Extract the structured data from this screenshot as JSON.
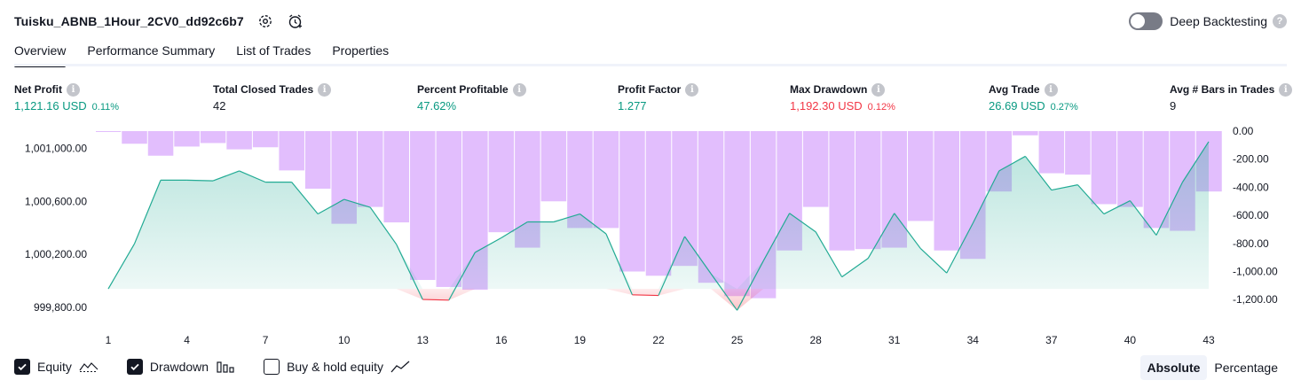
{
  "header": {
    "title": "Tuisku_ABNB_1Hour_2CV0_dd92c6b7",
    "deep_backtesting_label": "Deep Backtesting",
    "help_glyph": "?"
  },
  "tabs": [
    {
      "label": "Overview",
      "active": true
    },
    {
      "label": "Performance Summary",
      "active": false
    },
    {
      "label": "List of Trades",
      "active": false
    },
    {
      "label": "Properties",
      "active": false
    }
  ],
  "info_glyph": "i",
  "metrics": [
    {
      "label": "Net Profit",
      "value": "1,121.16 USD",
      "pct": "0.11%",
      "tone": "pos"
    },
    {
      "label": "Total Closed Trades",
      "value": "42",
      "pct": "",
      "tone": "neu"
    },
    {
      "label": "Percent Profitable",
      "value": "47.62%",
      "pct": "",
      "tone": "pos"
    },
    {
      "label": "Profit Factor",
      "value": "1.277",
      "pct": "",
      "tone": "pos"
    },
    {
      "label": "Max Drawdown",
      "value": "1,192.30 USD",
      "pct": "0.12%",
      "tone": "neg"
    },
    {
      "label": "Avg Trade",
      "value": "26.69 USD",
      "pct": "0.27%",
      "tone": "pos"
    },
    {
      "label": "Avg # Bars in Trades",
      "value": "9",
      "pct": "",
      "tone": "neu"
    }
  ],
  "legend": {
    "equity_label": "Equity",
    "drawdown_label": "Drawdown",
    "buyhold_label": "Buy & hold equity"
  },
  "modes": {
    "absolute_label": "Absolute",
    "percentage_label": "Percentage"
  },
  "colors": {
    "equity_line": "#22ab94",
    "equity_loss_line": "#f23645",
    "drawdown_bar": "#ce93fb",
    "equity_fill": "#22ab94"
  },
  "chart_data": {
    "type": "line",
    "x": [
      1,
      2,
      3,
      4,
      5,
      6,
      7,
      8,
      9,
      10,
      11,
      12,
      13,
      14,
      15,
      16,
      17,
      18,
      19,
      20,
      21,
      22,
      23,
      24,
      25,
      26,
      27,
      28,
      29,
      30,
      31,
      32,
      33,
      34,
      35,
      36,
      37,
      38,
      39,
      40,
      41,
      42,
      43
    ],
    "x_tick_labels": [
      "1",
      "4",
      "7",
      "10",
      "13",
      "16",
      "19",
      "22",
      "25",
      "28",
      "31",
      "34",
      "37",
      "40",
      "43"
    ],
    "baseline": 999940,
    "series": [
      {
        "name": "Equity",
        "axis": "left",
        "values": [
          999940,
          1000280,
          1000760,
          1000760,
          1000755,
          1000830,
          1000745,
          1000745,
          1000505,
          1000615,
          1000555,
          1000275,
          999860,
          999855,
          1000215,
          1000325,
          1000445,
          1000445,
          1000505,
          1000355,
          999895,
          999890,
          1000335,
          1000055,
          999778,
          1000150,
          1000510,
          1000370,
          1000030,
          1000170,
          1000510,
          1000245,
          1000060,
          1000435,
          1000830,
          1000940,
          1000685,
          1000725,
          1000505,
          1000605,
          1000345,
          1000745,
          1001050
        ]
      },
      {
        "name": "Drawdown",
        "axis": "right",
        "values": [
          -5,
          -90,
          -175,
          -110,
          -85,
          -130,
          -115,
          -280,
          -410,
          -660,
          -540,
          -650,
          -1060,
          -1110,
          -1130,
          -720,
          -830,
          -500,
          -690,
          -690,
          -1000,
          -1030,
          -960,
          -1080,
          -1175,
          -1190,
          -850,
          -540,
          -850,
          -840,
          -830,
          -640,
          -850,
          -910,
          -430,
          -30,
          -300,
          -310,
          -520,
          -540,
          -690,
          -710,
          -430
        ]
      }
    ],
    "left_axis": {
      "min": 999700,
      "max": 1001130,
      "ticks": [
        999800,
        1000200,
        1000600,
        1001000
      ],
      "tick_labels": [
        "999,800.00",
        "1,000,200.00",
        "1,000,600.00",
        "1,001,000.00"
      ]
    },
    "right_axis": {
      "min": -1350,
      "max": 0,
      "ticks": [
        0,
        -200,
        -400,
        -600,
        -800,
        -1000,
        -1200
      ],
      "tick_labels": [
        "0.00",
        "-200.00",
        "-400.00",
        "-600.00",
        "-800.00",
        "-1,000.00",
        "-1,200.00"
      ]
    },
    "grid": false,
    "legend_position": "bottom-left"
  }
}
